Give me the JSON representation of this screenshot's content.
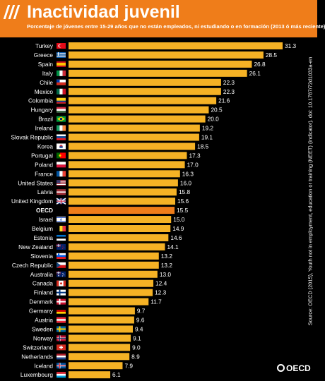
{
  "header": {
    "title": "Inactividad juvenil",
    "subtitle": "Porcentaje de jóvenes entre 15-29 años que no están empleados, ni estudiando o en formación (2013 ó más reciente)"
  },
  "source": "Source: OECD (2015), Youth not in employment, education or training (NEET) (indicator). doi: 10.1787/72d1033a-en",
  "brand": "OECD",
  "colors": {
    "bar": "#f5b225",
    "highlight": "#ef7d1a",
    "header": "#ef7d1a",
    "background": "#000000",
    "text": "#ffffff"
  },
  "chart_data": {
    "type": "bar",
    "orientation": "horizontal",
    "categories": [
      "Turkey",
      "Greece",
      "Spain",
      "Italy",
      "Chile",
      "Mexico",
      "Colombia",
      "Hungary",
      "Brazil",
      "Ireland",
      "Slovak Republic",
      "Korea",
      "Portugal",
      "Poland",
      "France",
      "United States",
      "Latvia",
      "United Kingdom",
      "OECD",
      "Israel",
      "Belgium",
      "Estonia",
      "New Zealand",
      "Slovenia",
      "Czech Republic",
      "Australia",
      "Canada",
      "Finland",
      "Denmark",
      "Germany",
      "Austria",
      "Sweden",
      "Norway",
      "Switzerland",
      "Netherlands",
      "Iceland",
      "Luxembourg"
    ],
    "values": [
      31.3,
      28.5,
      26.8,
      26.1,
      22.3,
      22.3,
      21.6,
      20.5,
      20.0,
      19.2,
      19.1,
      18.5,
      17.3,
      17.0,
      16.3,
      16.0,
      15.8,
      15.6,
      15.5,
      15.0,
      14.9,
      14.6,
      14.1,
      13.2,
      13.2,
      13.0,
      12.4,
      12.3,
      11.7,
      9.7,
      9.6,
      9.4,
      9.1,
      9.0,
      8.9,
      7.9,
      6.1
    ],
    "highlight": "OECD",
    "xlim": [
      0,
      31.3
    ],
    "grid": false,
    "legend": "none"
  }
}
